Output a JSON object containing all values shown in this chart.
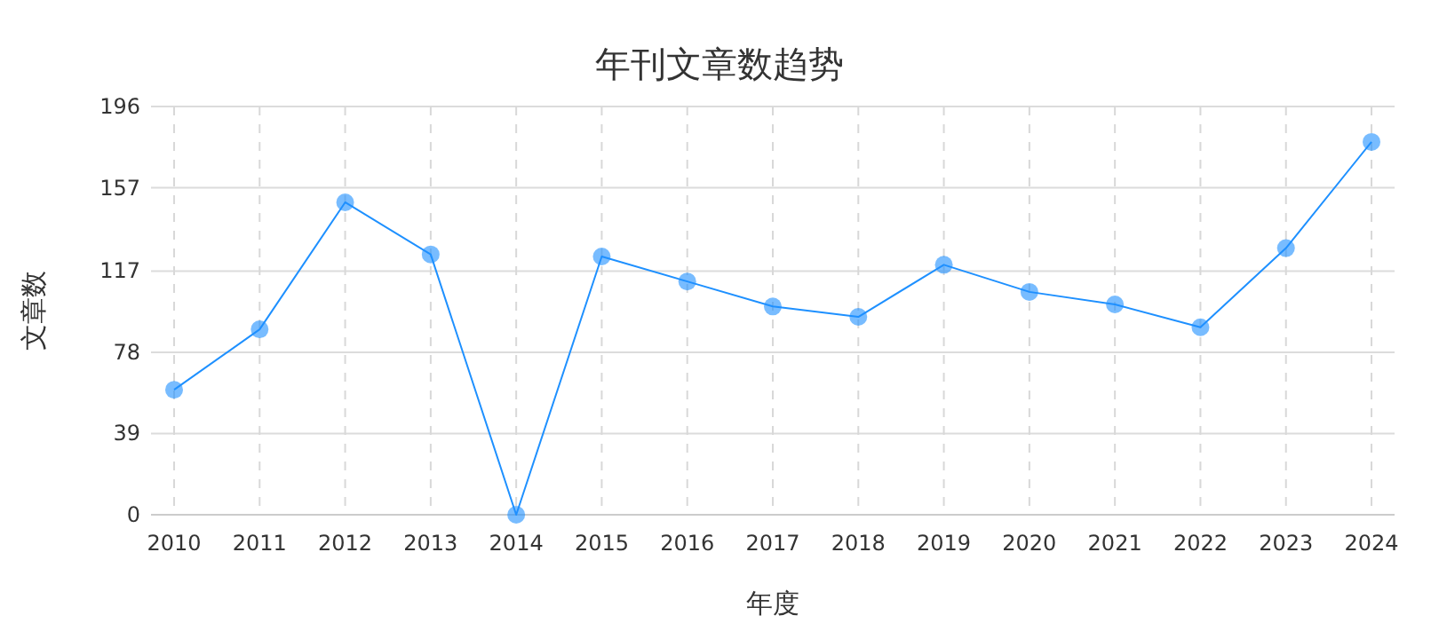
{
  "chart_data": {
    "type": "line",
    "title": "年刊文章数趋势",
    "xlabel": "年度",
    "ylabel": "文章数",
    "categories": [
      "2010",
      "2011",
      "2012",
      "2013",
      "2014",
      "2015",
      "2016",
      "2017",
      "2018",
      "2019",
      "2020",
      "2021",
      "2022",
      "2023",
      "2024"
    ],
    "series": [
      {
        "color": "#1e90ff",
        "values": [
          60,
          89,
          150,
          125,
          0,
          124,
          112,
          100,
          95,
          120,
          107,
          101,
          90,
          128,
          179
        ]
      }
    ],
    "ylim": [
      0,
      196
    ],
    "yticks": [
      0,
      39,
      78,
      117,
      157,
      196
    ],
    "grid": true,
    "marker": "circle",
    "line_style": "solid"
  }
}
